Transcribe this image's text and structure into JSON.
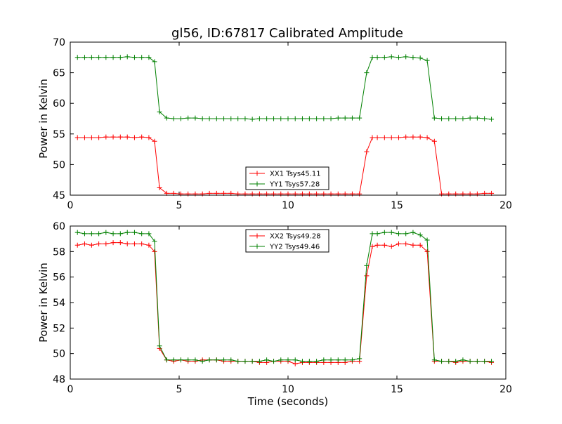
{
  "title": "gl56, ID:67817 Calibrated Amplitude",
  "colors": {
    "xx": "#ff0000",
    "yy": "#008000"
  },
  "chart_data": [
    {
      "type": "line",
      "xlabel": "",
      "ylabel": "Power in Kelvin",
      "xlim": [
        0,
        20
      ],
      "ylim": [
        45,
        70
      ],
      "xticks": [
        "0",
        "5",
        "10",
        "15",
        "20"
      ],
      "yticks": [
        "45",
        "50",
        "55",
        "60",
        "65",
        "70"
      ],
      "legend_position": "lower-center",
      "x": [
        0.33,
        0.66,
        0.98,
        1.31,
        1.64,
        1.97,
        2.3,
        2.62,
        2.95,
        3.28,
        3.61,
        3.87,
        4.1,
        4.43,
        4.75,
        5.08,
        5.41,
        5.74,
        6.07,
        6.39,
        6.72,
        7.05,
        7.38,
        7.7,
        8.03,
        8.36,
        8.69,
        9.02,
        9.34,
        9.67,
        10.0,
        10.33,
        10.66,
        10.98,
        11.31,
        11.64,
        11.97,
        12.3,
        12.62,
        12.95,
        13.28,
        13.61,
        13.87,
        14.1,
        14.43,
        14.75,
        15.08,
        15.41,
        15.74,
        16.07,
        16.39,
        16.72,
        17.05,
        17.38,
        17.7,
        18.03,
        18.36,
        18.69,
        19.02,
        19.34
      ],
      "series": [
        {
          "name": "XX1 Tsys45.11",
          "color": "#ff0000",
          "values": [
            54.4,
            54.4,
            54.4,
            54.4,
            54.5,
            54.5,
            54.5,
            54.5,
            54.4,
            54.5,
            54.4,
            53.8,
            46.2,
            45.3,
            45.3,
            45.2,
            45.2,
            45.2,
            45.2,
            45.3,
            45.3,
            45.3,
            45.3,
            45.2,
            45.2,
            45.2,
            45.2,
            45.2,
            45.2,
            45.2,
            45.2,
            45.2,
            45.2,
            45.2,
            45.2,
            45.2,
            45.2,
            45.2,
            45.2,
            45.2,
            45.2,
            52.1,
            54.4,
            54.4,
            54.4,
            54.4,
            54.4,
            54.5,
            54.5,
            54.5,
            54.4,
            53.8,
            45.2,
            45.2,
            45.2,
            45.2,
            45.2,
            45.2,
            45.3,
            45.3
          ]
        },
        {
          "name": "YY1 Tsys57.28",
          "color": "#008000",
          "values": [
            67.5,
            67.5,
            67.5,
            67.5,
            67.5,
            67.5,
            67.5,
            67.6,
            67.5,
            67.5,
            67.5,
            66.8,
            58.6,
            57.6,
            57.5,
            57.5,
            57.6,
            57.6,
            57.5,
            57.5,
            57.5,
            57.5,
            57.5,
            57.5,
            57.5,
            57.4,
            57.5,
            57.5,
            57.5,
            57.5,
            57.5,
            57.5,
            57.5,
            57.5,
            57.5,
            57.5,
            57.5,
            57.6,
            57.6,
            57.6,
            57.6,
            65.0,
            67.5,
            67.5,
            67.5,
            67.6,
            67.5,
            67.6,
            67.5,
            67.4,
            67.0,
            57.6,
            57.5,
            57.5,
            57.5,
            57.5,
            57.6,
            57.6,
            57.5,
            57.4
          ]
        }
      ]
    },
    {
      "type": "line",
      "xlabel": "Time (seconds)",
      "ylabel": "Power in Kelvin",
      "xlim": [
        0,
        20
      ],
      "ylim": [
        48,
        60
      ],
      "xticks": [
        "0",
        "5",
        "10",
        "15",
        "20"
      ],
      "yticks": [
        "48",
        "50",
        "52",
        "54",
        "56",
        "58",
        "60"
      ],
      "legend_position": "upper-center",
      "x": [
        0.33,
        0.66,
        0.98,
        1.31,
        1.64,
        1.97,
        2.3,
        2.62,
        2.95,
        3.28,
        3.61,
        3.87,
        4.1,
        4.43,
        4.75,
        5.08,
        5.41,
        5.74,
        6.07,
        6.39,
        6.72,
        7.05,
        7.38,
        7.7,
        8.03,
        8.36,
        8.69,
        9.02,
        9.34,
        9.67,
        10.0,
        10.33,
        10.66,
        10.98,
        11.31,
        11.64,
        11.97,
        12.3,
        12.62,
        12.95,
        13.28,
        13.61,
        13.87,
        14.1,
        14.43,
        14.75,
        15.08,
        15.41,
        15.74,
        16.07,
        16.39,
        16.72,
        17.05,
        17.38,
        17.7,
        18.03,
        18.36,
        18.69,
        19.02,
        19.34
      ],
      "series": [
        {
          "name": "XX2 Tsys49.28",
          "color": "#ff0000",
          "values": [
            58.5,
            58.6,
            58.5,
            58.6,
            58.6,
            58.7,
            58.7,
            58.6,
            58.6,
            58.6,
            58.5,
            58.0,
            50.4,
            49.5,
            49.4,
            49.5,
            49.4,
            49.4,
            49.5,
            49.5,
            49.5,
            49.4,
            49.4,
            49.4,
            49.4,
            49.4,
            49.3,
            49.3,
            49.4,
            49.4,
            49.4,
            49.2,
            49.3,
            49.3,
            49.3,
            49.3,
            49.3,
            49.3,
            49.3,
            49.4,
            49.4,
            56.1,
            58.4,
            58.5,
            58.5,
            58.4,
            58.6,
            58.6,
            58.5,
            58.5,
            58.0,
            49.4,
            49.4,
            49.4,
            49.3,
            49.4,
            49.4,
            49.4,
            49.4,
            49.3
          ]
        },
        {
          "name": "YY2 Tsys49.46",
          "color": "#008000",
          "values": [
            59.5,
            59.4,
            59.4,
            59.4,
            59.5,
            59.4,
            59.4,
            59.5,
            59.5,
            59.4,
            59.4,
            58.8,
            50.6,
            49.5,
            49.5,
            49.5,
            49.5,
            49.5,
            49.4,
            49.5,
            49.5,
            49.5,
            49.5,
            49.4,
            49.4,
            49.4,
            49.4,
            49.5,
            49.4,
            49.5,
            49.5,
            49.5,
            49.4,
            49.4,
            49.4,
            49.5,
            49.5,
            49.5,
            49.5,
            49.5,
            49.6,
            56.9,
            59.4,
            59.4,
            59.5,
            59.5,
            59.4,
            59.4,
            59.5,
            59.3,
            58.9,
            49.5,
            49.4,
            49.4,
            49.4,
            49.5,
            49.4,
            49.4,
            49.4,
            49.4
          ]
        }
      ]
    }
  ]
}
